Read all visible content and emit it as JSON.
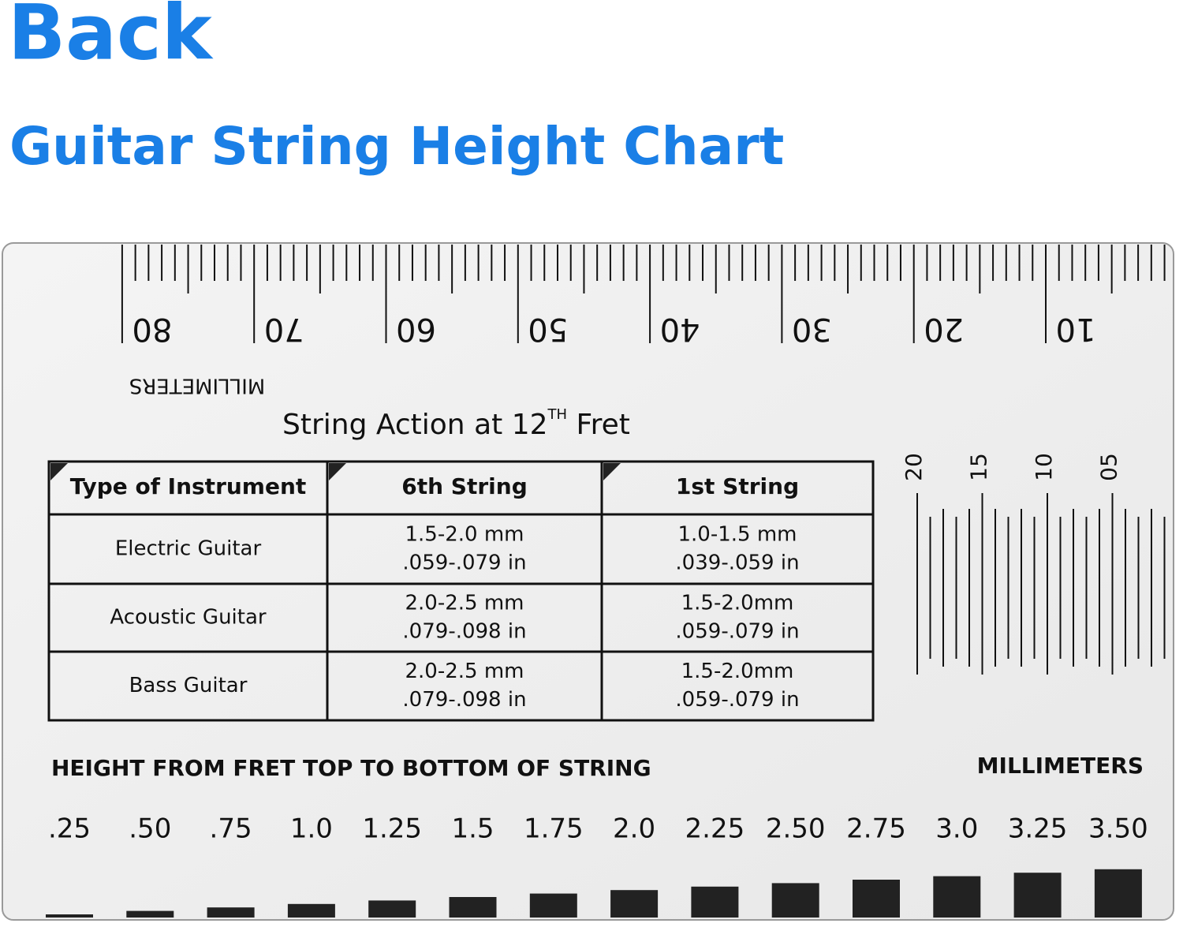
{
  "header": {
    "title": "Back",
    "subtitle": "Guitar String Height Chart"
  },
  "ruler": {
    "labels": [
      "80",
      "70",
      "60",
      "50",
      "40",
      "30",
      "20",
      "10"
    ],
    "unit": "MILLIMETERS"
  },
  "heading": {
    "before": "String Action at 12",
    "superscript": "TH",
    "after": " Fret"
  },
  "table": {
    "headers": [
      "Type of Instrument",
      "6th String",
      "1st String"
    ],
    "rows": [
      [
        "Electric Guitar",
        [
          "1.5-2.0 mm",
          ".059-.079 in"
        ],
        [
          "1.0-1.5 mm",
          ".039-.059 in"
        ]
      ],
      [
        "Acoustic Guitar",
        [
          "2.0-2.5 mm",
          ".079-.098 in"
        ],
        [
          "1.5-2.0mm",
          ".059-.079 in"
        ]
      ],
      [
        "Bass Guitar",
        [
          "2.0-2.5 mm",
          ".079-.098 in"
        ],
        [
          "1.5-2.0mm",
          ".059-.079 in"
        ]
      ]
    ]
  },
  "scale": {
    "labels": [
      "20",
      "15",
      "10",
      "05"
    ]
  },
  "gauge": {
    "caption": "HEIGHT FROM FRET TOP TO BOTTOM OF STRING",
    "unit": "MILLIMETERS",
    "labels": [
      ".25",
      ".50",
      ".75",
      "1.0",
      "1.25",
      "1.5",
      "1.75",
      "2.0",
      "2.25",
      "2.50",
      "2.75",
      "3.0",
      "3.25",
      "3.50"
    ]
  }
}
